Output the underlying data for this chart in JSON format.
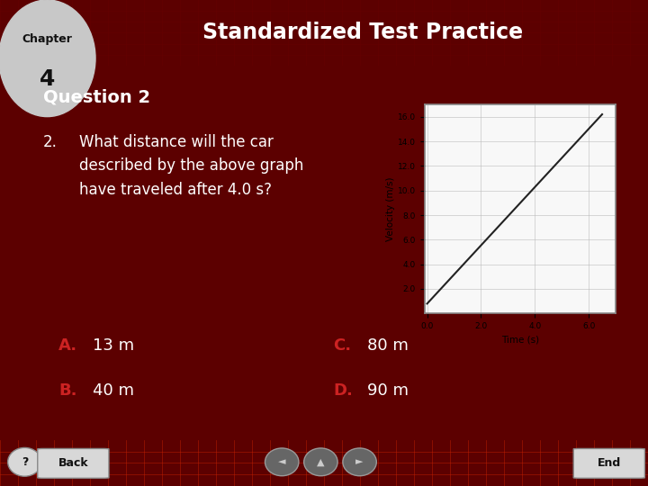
{
  "title": "Standardized Test Practice",
  "chapter_label": "Chapter",
  "chapter_number": "4",
  "question_number": "Question 2",
  "question_text": "What distance will the car\ndescribed by the above graph\nhave traveled after 4.0 s?",
  "question_num_prefix": "2.",
  "answers": [
    {
      "letter": "A.",
      "text": "13 m"
    },
    {
      "letter": "B.",
      "text": "40 m"
    },
    {
      "letter": "C.",
      "text": "80 m"
    },
    {
      "letter": "D.",
      "text": "90 m"
    }
  ],
  "bg_color": "#5c0000",
  "header_bg": "#7a0000",
  "title_color": "#ffffff",
  "question_color": "#ffffff",
  "answer_letter_color": "#cc2222",
  "answer_text_color": "#ffffff",
  "chapter_tab_color": "#c8c8c8",
  "footer_bg": "#990000",
  "graph": {
    "x_data": [
      0.0,
      6.5
    ],
    "y_data": [
      0.8,
      16.2
    ],
    "xlabel": "Time (s)",
    "ylabel": "Velocity (m/s)",
    "xlim": [
      -0.1,
      7.0
    ],
    "ylim": [
      0.0,
      17.0
    ],
    "xticks": [
      0.0,
      2.0,
      4.0,
      6.0
    ],
    "yticks": [
      2.0,
      4.0,
      6.0,
      8.0,
      10.0,
      12.0,
      14.0,
      16.0
    ],
    "x_tick_labels": [
      "0.0",
      "2.0",
      "4.0",
      "6.0"
    ],
    "y_tick_labels": [
      "2.0",
      "4.0",
      "6.0",
      "8.0",
      "10.0",
      "12.0",
      "14.0",
      "16.0"
    ],
    "line_color": "#222222",
    "bg_color": "#f8f8f8",
    "grid_color": "#bbbbbb",
    "frame_color": "#888888"
  }
}
